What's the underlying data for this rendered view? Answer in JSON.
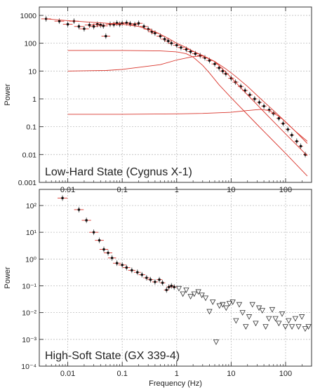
{
  "chart_data": [
    {
      "type": "scatter",
      "panel_label": "Low-Hard State (Cygnus X-1)",
      "ylabel": "Power",
      "xlabel": "",
      "log_x": true,
      "log_y": true,
      "xlim": [
        0.003,
        300
      ],
      "ylim": [
        0.001,
        2000
      ],
      "grid": true,
      "x_ticks": [
        {
          "v": 0.01,
          "label": "0.01"
        },
        {
          "v": 0.1,
          "label": "0.1"
        },
        {
          "v": 1,
          "label": "1"
        },
        {
          "v": 10,
          "label": "10"
        },
        {
          "v": 100,
          "label": "100"
        }
      ],
      "y_ticks": [
        {
          "v": 1000,
          "label": "1000"
        },
        {
          "v": 100,
          "label": "100"
        },
        {
          "v": 10,
          "label": "10"
        },
        {
          "v": 1,
          "label": "1"
        },
        {
          "v": 0.1,
          "label": "0.1"
        },
        {
          "v": 0.01,
          "label": "0.01"
        },
        {
          "v": 0.001,
          "label": "0.001"
        }
      ],
      "model_color": "#d9342b",
      "data_color": "#111111",
      "series": [
        {
          "role": "data",
          "x": [
            0.004,
            0.007,
            0.01,
            0.013,
            0.016,
            0.02,
            0.025,
            0.03,
            0.035,
            0.04,
            0.045,
            0.05,
            0.06,
            0.07,
            0.08,
            0.09,
            0.1,
            0.12,
            0.14,
            0.17,
            0.2,
            0.25,
            0.3,
            0.35,
            0.4,
            0.5,
            0.6,
            0.7,
            0.8,
            1.0,
            1.2,
            1.5,
            1.8,
            2.2,
            2.7,
            3.3,
            4,
            5,
            6,
            7,
            8,
            10,
            12,
            15,
            18,
            22,
            27,
            33,
            40,
            50,
            60,
            75,
            90,
            110,
            130,
            160,
            190,
            230
          ],
          "y": [
            750,
            620,
            480,
            620,
            400,
            330,
            450,
            400,
            480,
            450,
            420,
            180,
            480,
            470,
            530,
            480,
            520,
            540,
            500,
            470,
            520,
            400,
            320,
            260,
            230,
            180,
            140,
            120,
            100,
            85,
            70,
            60,
            50,
            42,
            36,
            30,
            24,
            18,
            13,
            10,
            8,
            5.5,
            4,
            2.8,
            2.0,
            1.4,
            1.0,
            0.75,
            0.55,
            0.4,
            0.3,
            0.2,
            0.13,
            0.08,
            0.05,
            0.03,
            0.02,
            0.01
          ]
        },
        {
          "role": "model",
          "name": "",
          "x": [
            0.004,
            0.01,
            0.03,
            0.1,
            0.2,
            0.4,
            0.7,
            1,
            1.5,
            2,
            3,
            5,
            8,
            12,
            20,
            35,
            60,
            100,
            150,
            250
          ],
          "y": [
            750,
            650,
            560,
            480,
            400,
            260,
            150,
            100,
            70,
            52,
            36,
            22,
            12,
            6.5,
            2.8,
            1.0,
            0.38,
            0.15,
            0.07,
            0.03
          ]
        },
        {
          "role": "model",
          "name": "",
          "x": [
            0.01,
            0.1,
            0.5,
            1,
            1.5,
            2,
            3,
            4,
            6,
            10,
            30,
            100,
            250
          ],
          "y": [
            55,
            55,
            53,
            49,
            42,
            32,
            16,
            8.5,
            3.2,
            1.1,
            0.12,
            0.011,
            0.0017
          ]
        },
        {
          "role": "model",
          "name": "",
          "x": [
            0.01,
            0.05,
            0.1,
            0.5,
            1,
            2,
            3,
            5,
            8,
            12,
            20,
            50,
            100,
            250
          ],
          "y": [
            10,
            10.5,
            11.5,
            17,
            25,
            33,
            35,
            22,
            9,
            4,
            1.4,
            0.22,
            0.055,
            0.009
          ]
        },
        {
          "role": "model",
          "name": "",
          "x": [
            0.01,
            0.1,
            1,
            3,
            10,
            20,
            35,
            50,
            80,
            150,
            250
          ],
          "y": [
            0.28,
            0.28,
            0.29,
            0.3,
            0.33,
            0.38,
            0.42,
            0.38,
            0.22,
            0.07,
            0.025
          ]
        }
      ]
    },
    {
      "type": "scatter",
      "panel_label": "High-Soft State (GX 339-4)",
      "ylabel": "Power",
      "xlabel": "Frequency (Hz)",
      "log_x": true,
      "log_y": true,
      "xlim": [
        0.003,
        300
      ],
      "ylim": [
        0.0001,
        400
      ],
      "grid": true,
      "x_ticks": [
        {
          "v": 0.01,
          "label": "0.01"
        },
        {
          "v": 0.1,
          "label": "0.1"
        },
        {
          "v": 1,
          "label": "1"
        },
        {
          "v": 10,
          "label": "10"
        },
        {
          "v": 100,
          "label": "100"
        }
      ],
      "y_ticks": [
        {
          "v": 100,
          "label": "10²"
        },
        {
          "v": 10,
          "label": "10¹"
        },
        {
          "v": 1,
          "label": "10⁰"
        },
        {
          "v": 0.1,
          "label": "10⁻¹"
        },
        {
          "v": 0.01,
          "label": "10⁻²"
        },
        {
          "v": 0.001,
          "label": "10⁻³"
        },
        {
          "v": 0.0001,
          "label": "10⁻⁴"
        }
      ],
      "model_color": "#d9342b",
      "data_color": "#111111",
      "series": [
        {
          "role": "data",
          "x": [
            0.008,
            0.016,
            0.022,
            0.03,
            0.038,
            0.046,
            0.055,
            0.065,
            0.08,
            0.1,
            0.12,
            0.15,
            0.19,
            0.23,
            0.28,
            0.33,
            0.4,
            0.48,
            0.55,
            0.65,
            0.72,
            0.8,
            0.9
          ],
          "y": [
            190,
            70,
            28,
            10,
            5,
            2.3,
            1.7,
            1.1,
            0.7,
            0.6,
            0.48,
            0.38,
            0.32,
            0.26,
            0.2,
            0.17,
            0.14,
            0.17,
            0.13,
            0.07,
            0.09,
            0.1,
            0.09
          ]
        },
        {
          "role": "upper_limit",
          "x": [
            1.1,
            1.3,
            1.5,
            1.8,
            2.1,
            2.5,
            2.9,
            3.4,
            4.0,
            4.6,
            5.3,
            6.1,
            7.0,
            8.1,
            9.3,
            10.7,
            12.3,
            14.1,
            16.2,
            18.6,
            21.4,
            24.6,
            28.3,
            32.5,
            37.4,
            43.0,
            49.4,
            56.8,
            65.3,
            75.1,
            86.3,
            99.2,
            114,
            131,
            151,
            173,
            199,
            229,
            263
          ],
          "y": [
            0.08,
            0.05,
            0.07,
            0.04,
            0.05,
            0.06,
            0.045,
            0.035,
            0.011,
            0.025,
            0.0008,
            0.018,
            0.02,
            0.015,
            0.022,
            0.025,
            0.005,
            0.02,
            0.01,
            0.003,
            0.007,
            0.02,
            0.004,
            0.015,
            0.012,
            0.003,
            0.006,
            0.013,
            0.006,
            0.004,
            0.009,
            0.003,
            0.005,
            0.003,
            0.006,
            0.003,
            0.007,
            0.0025,
            0.003
          ]
        }
      ]
    }
  ]
}
